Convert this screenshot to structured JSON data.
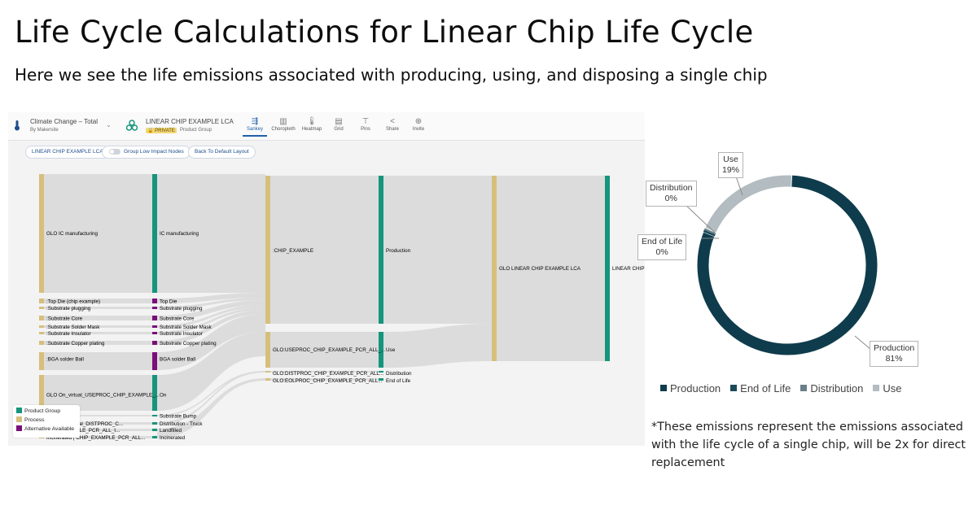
{
  "page": {
    "title": "Life Cycle Calculations for Linear Chip Life Cycle",
    "subtitle": "Here we see the life emissions associated with producing, using, and disposing a single chip",
    "footnote": "*These emissions represent the emissions associated with the life cycle of a single chip, will be 2x for direct replacement"
  },
  "app": {
    "impact_selector": {
      "title": "Climate Change – Total",
      "subtitle": "By Makersite"
    },
    "product": {
      "name": "LINEAR CHIP EXAMPLE LCA",
      "badge": "PRIVATE",
      "type": "Product Group"
    },
    "tools": [
      {
        "label": "Sankey",
        "icon": "sankey-icon",
        "active": true
      },
      {
        "label": "Choropleth",
        "icon": "choropleth-icon",
        "active": false
      },
      {
        "label": "Heatmap",
        "icon": "heatmap-icon",
        "active": false
      },
      {
        "label": "Grid",
        "icon": "grid-icon",
        "active": false
      },
      {
        "label": "Pins",
        "icon": "pin-icon",
        "active": false
      },
      {
        "label": "Share",
        "icon": "share-icon",
        "active": false
      },
      {
        "label": "Invite",
        "icon": "invite-icon",
        "active": false
      }
    ],
    "controls": {
      "breadcrumb": "LINEAR CHIP EXAMPLE LCA",
      "group_toggle": "Group Low Impact Nodes",
      "reset_button": "Back To Default Layout"
    },
    "legend": [
      {
        "label": "Product Group",
        "color": "#15957c"
      },
      {
        "label": "Process",
        "color": "#d6bf7d"
      },
      {
        "label": "Alternative Available",
        "color": "#7a0f7a"
      }
    ],
    "sankey": {
      "col1": [
        "GLO IC manufacturing",
        ":Top Die (chip example)",
        ":Substrate plugging",
        ":Substrate Core",
        ":Substrate Solder Mask",
        ":Substrate Insulator",
        ":Substrate Copper plating",
        ":BGA solder Ball",
        "GLO On_virtual_USEPROC_CHIP_EXAMPLE_...",
        "",
        "...- Truck_virtual_DISTPROC_C...",
        "CHIP_EXAMPLE_PCR_ALL_I...",
        "Incinerated | CHIP_EXAMPLE_PCR_ALL..."
      ],
      "col2": [
        "IC manufacturing",
        "Top Die",
        "Substrate plugging",
        "Substrate Core",
        "Substrate Solder Mask",
        "Substrate Insulator",
        "Substrate Copper plating",
        "BGA solder Ball",
        "On",
        "Substrate Bump",
        "Distribution - Truck",
        "Landfilled",
        "Incinerated"
      ],
      "col3": [
        ":CHIP_EXAMPLE",
        "GLO:USEPROC_CHIP_EXAMPLE_PCR_ALL_...",
        "GLO:DISTPROC_CHIP_EXAMPLE_PCR_ALL...",
        "GLO:EOLPROC_CHIP_EXAMPLE_PCR_ALL..."
      ],
      "col4": [
        "Production",
        "Use",
        "Distribution",
        "End of Life"
      ],
      "col5": [
        "GLO LINEAR CHIP EXAMPLE LCA"
      ],
      "col6": [
        "LINEAR CHIP E"
      ]
    }
  },
  "chart_data": {
    "type": "pie",
    "variant": "donut",
    "categories": [
      "Production",
      "End of Life",
      "Distribution",
      "Use"
    ],
    "values": [
      81,
      0,
      0,
      19
    ],
    "labels": [
      {
        "name": "Production",
        "pct": "81%"
      },
      {
        "name": "End of Life",
        "pct": "0%"
      },
      {
        "name": "Distribution",
        "pct": "0%"
      },
      {
        "name": "Use",
        "pct": "19%"
      }
    ],
    "colors": [
      "#0f3c4c",
      "#1c4a5a",
      "#6a7f89",
      "#b2bcc1"
    ],
    "legend_position": "bottom"
  }
}
